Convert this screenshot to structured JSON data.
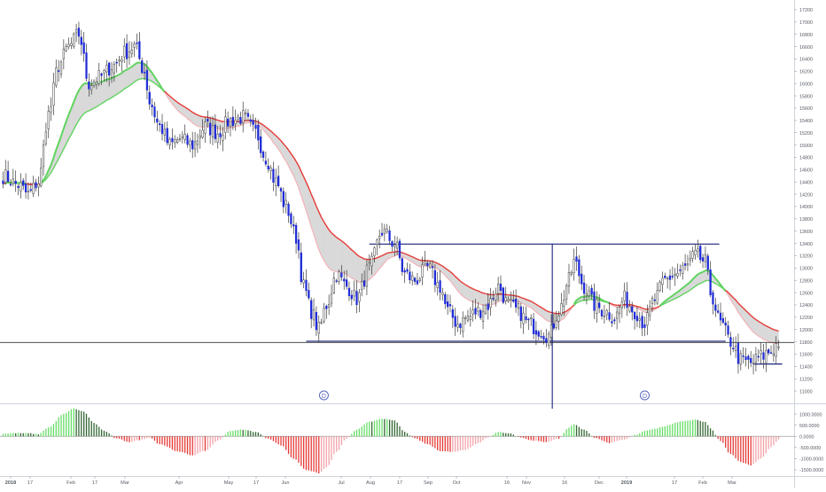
{
  "chart_data": [
    {
      "type": "candlestick",
      "title": "",
      "ylim": [
        10800,
        17300
      ],
      "y_ticks": [
        11000,
        11200,
        11400,
        11600,
        11800,
        12000,
        12200,
        12400,
        12600,
        12800,
        13000,
        13200,
        13400,
        13600,
        13800,
        14000,
        14200,
        14400,
        14600,
        14800,
        15000,
        15200,
        15400,
        15600,
        15800,
        16000,
        16200,
        16400,
        16600,
        16800,
        17000,
        17200
      ],
      "y_tick_labels": [
        "11000",
        "11200",
        "11400",
        "11600",
        "11800",
        "12000",
        "12200",
        "12400",
        "12600",
        "12800",
        "13000",
        "13200",
        "13400",
        "13600",
        "13800",
        "14000",
        "14200",
        "14400",
        "14600",
        "14800",
        "15000",
        "15200",
        "15400",
        "15600",
        "15800",
        "16000",
        "16200",
        "16400",
        "16600",
        "16800",
        "17000",
        "17200"
      ],
      "x_tick_labels": [
        "2018",
        "17",
        "Feb",
        "17",
        "Mar",
        "Apr",
        "May",
        "17",
        "Jun",
        "Jul",
        "Aug",
        "17",
        "Sep",
        "Oct",
        "16",
        "Nov",
        "16",
        "Dec",
        "2019",
        "17",
        "Feb",
        "Mar"
      ],
      "current_level": 11790,
      "close_keypoints": [
        [
          0,
          14500
        ],
        [
          6,
          14350
        ],
        [
          10,
          14200
        ],
        [
          14,
          14400
        ],
        [
          18,
          15500
        ],
        [
          22,
          16300
        ],
        [
          26,
          16600
        ],
        [
          30,
          16800
        ],
        [
          34,
          16000
        ],
        [
          38,
          16100
        ],
        [
          44,
          16300
        ],
        [
          48,
          16500
        ],
        [
          52,
          16600
        ],
        [
          56,
          16200
        ],
        [
          58,
          15700
        ],
        [
          62,
          15300
        ],
        [
          66,
          15000
        ],
        [
          70,
          15100
        ],
        [
          75,
          15000
        ],
        [
          80,
          15300
        ],
        [
          85,
          15200
        ],
        [
          90,
          15400
        ],
        [
          95,
          15450
        ],
        [
          100,
          15200
        ],
        [
          104,
          14800
        ],
        [
          108,
          14400
        ],
        [
          112,
          14000
        ],
        [
          116,
          13500
        ],
        [
          119,
          12700
        ],
        [
          122,
          12300
        ],
        [
          125,
          12000
        ],
        [
          128,
          12400
        ],
        [
          132,
          12900
        ],
        [
          136,
          12700
        ],
        [
          140,
          12500
        ],
        [
          145,
          13000
        ],
        [
          150,
          13600
        ],
        [
          155,
          13400
        ],
        [
          159,
          12900
        ],
        [
          163,
          12800
        ],
        [
          168,
          13000
        ],
        [
          173,
          12700
        ],
        [
          176,
          12300
        ],
        [
          180,
          12100
        ],
        [
          184,
          12200
        ],
        [
          188,
          12300
        ],
        [
          192,
          12400
        ],
        [
          196,
          12700
        ],
        [
          200,
          12400
        ],
        [
          204,
          12300
        ],
        [
          208,
          12100
        ],
        [
          212,
          12000
        ],
        [
          216,
          11900
        ],
        [
          220,
          12300
        ],
        [
          224,
          12800
        ],
        [
          226,
          13100
        ],
        [
          230,
          12700
        ],
        [
          234,
          12400
        ],
        [
          238,
          12300
        ],
        [
          242,
          12200
        ],
        [
          246,
          12500
        ],
        [
          250,
          12300
        ],
        [
          254,
          12100
        ],
        [
          258,
          12500
        ],
        [
          262,
          12800
        ],
        [
          266,
          12900
        ],
        [
          270,
          13000
        ],
        [
          274,
          13200
        ],
        [
          278,
          13100
        ],
        [
          280,
          12600
        ],
        [
          284,
          12100
        ],
        [
          288,
          11800
        ],
        [
          292,
          11500
        ],
        [
          296,
          11450
        ],
        [
          300,
          11560
        ],
        [
          304,
          11650
        ],
        [
          307,
          11790
        ]
      ],
      "channel": {
        "resistance": 13390,
        "support": 11810
      },
      "range_marker": {
        "high": 13390,
        "low": 10800
      },
      "breakdown_level": 11440,
      "dividend_marker": "D",
      "moving_averages": {
        "fast_color": "#f4b3b8",
        "slow_color": "#e53935",
        "bull_color": "#5fd35f",
        "fill_color": "#d9d9d9"
      },
      "candle_colors": {
        "up": "#ffffff",
        "down": "#1f2bd6",
        "wick": "#3a3a3a"
      }
    },
    {
      "type": "histogram",
      "title": "",
      "ylim": [
        -1700,
        1400
      ],
      "y_ticks": [
        1000,
        500,
        0,
        -500,
        -1000,
        -1500
      ],
      "y_tick_labels": [
        "1000.0000",
        "500.0000",
        "0.0000",
        "-500.0000",
        "-1000.0000",
        "-1500.0000"
      ],
      "series_keypoints": [
        [
          0,
          120
        ],
        [
          5,
          150
        ],
        [
          10,
          140
        ],
        [
          14,
          100
        ],
        [
          18,
          400
        ],
        [
          24,
          1000
        ],
        [
          28,
          1250
        ],
        [
          32,
          1100
        ],
        [
          36,
          600
        ],
        [
          40,
          250
        ],
        [
          45,
          -100
        ],
        [
          50,
          -250
        ],
        [
          55,
          -150
        ],
        [
          58,
          -50
        ],
        [
          62,
          -350
        ],
        [
          70,
          -700
        ],
        [
          75,
          -850
        ],
        [
          80,
          -650
        ],
        [
          85,
          -200
        ],
        [
          90,
          250
        ],
        [
          95,
          300
        ],
        [
          100,
          200
        ],
        [
          105,
          -100
        ],
        [
          110,
          -400
        ],
        [
          115,
          -1000
        ],
        [
          120,
          -1500
        ],
        [
          125,
          -1650
        ],
        [
          128,
          -1400
        ],
        [
          132,
          -700
        ],
        [
          136,
          -100
        ],
        [
          140,
          300
        ],
        [
          145,
          650
        ],
        [
          150,
          800
        ],
        [
          155,
          700
        ],
        [
          159,
          200
        ],
        [
          163,
          -100
        ],
        [
          168,
          -350
        ],
        [
          173,
          -650
        ],
        [
          178,
          -700
        ],
        [
          183,
          -600
        ],
        [
          188,
          -300
        ],
        [
          192,
          -50
        ],
        [
          196,
          200
        ],
        [
          200,
          150
        ],
        [
          205,
          -50
        ],
        [
          210,
          -200
        ],
        [
          215,
          -250
        ],
        [
          220,
          -100
        ],
        [
          224,
          400
        ],
        [
          226,
          550
        ],
        [
          230,
          300
        ],
        [
          234,
          -50
        ],
        [
          240,
          -300
        ],
        [
          246,
          -150
        ],
        [
          250,
          50
        ],
        [
          254,
          250
        ],
        [
          258,
          350
        ],
        [
          262,
          450
        ],
        [
          266,
          600
        ],
        [
          270,
          700
        ],
        [
          274,
          750
        ],
        [
          278,
          650
        ],
        [
          280,
          350
        ],
        [
          284,
          -200
        ],
        [
          288,
          -800
        ],
        [
          292,
          -1150
        ],
        [
          296,
          -1300
        ],
        [
          300,
          -1000
        ],
        [
          304,
          -500
        ],
        [
          307,
          -150
        ]
      ],
      "colors": {
        "pos_rising": "#66dd66",
        "pos_falling": "#336633",
        "neg_falling": "#e53935",
        "neg_rising": "#f2a3a8"
      }
    }
  ]
}
